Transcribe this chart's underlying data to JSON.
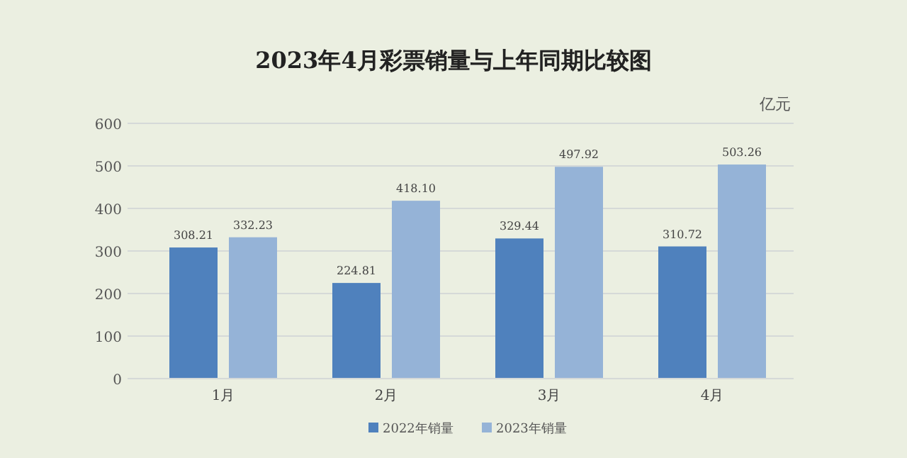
{
  "chart_data": {
    "type": "bar",
    "title": "2023年4月彩票销量与上年同期比较图",
    "ylabel": "亿元",
    "categories": [
      "1月",
      "2月",
      "3月",
      "4月"
    ],
    "series": [
      {
        "name": "2022年销量",
        "color": "#4f81bd",
        "values": [
          308.21,
          224.81,
          329.44,
          310.72
        ],
        "value_labels": [
          "308.21",
          "224.81",
          "329.44",
          "310.72"
        ]
      },
      {
        "name": "2023年销量",
        "color": "#95b3d7",
        "values": [
          332.23,
          418.1,
          497.92,
          503.26
        ],
        "value_labels": [
          "332.23",
          "418.10",
          "497.92",
          "503.26"
        ]
      }
    ],
    "ylim": [
      0,
      600
    ],
    "yticks": [
      0,
      100,
      200,
      300,
      400,
      500,
      600
    ],
    "grid": "y",
    "legend": "bottom"
  }
}
